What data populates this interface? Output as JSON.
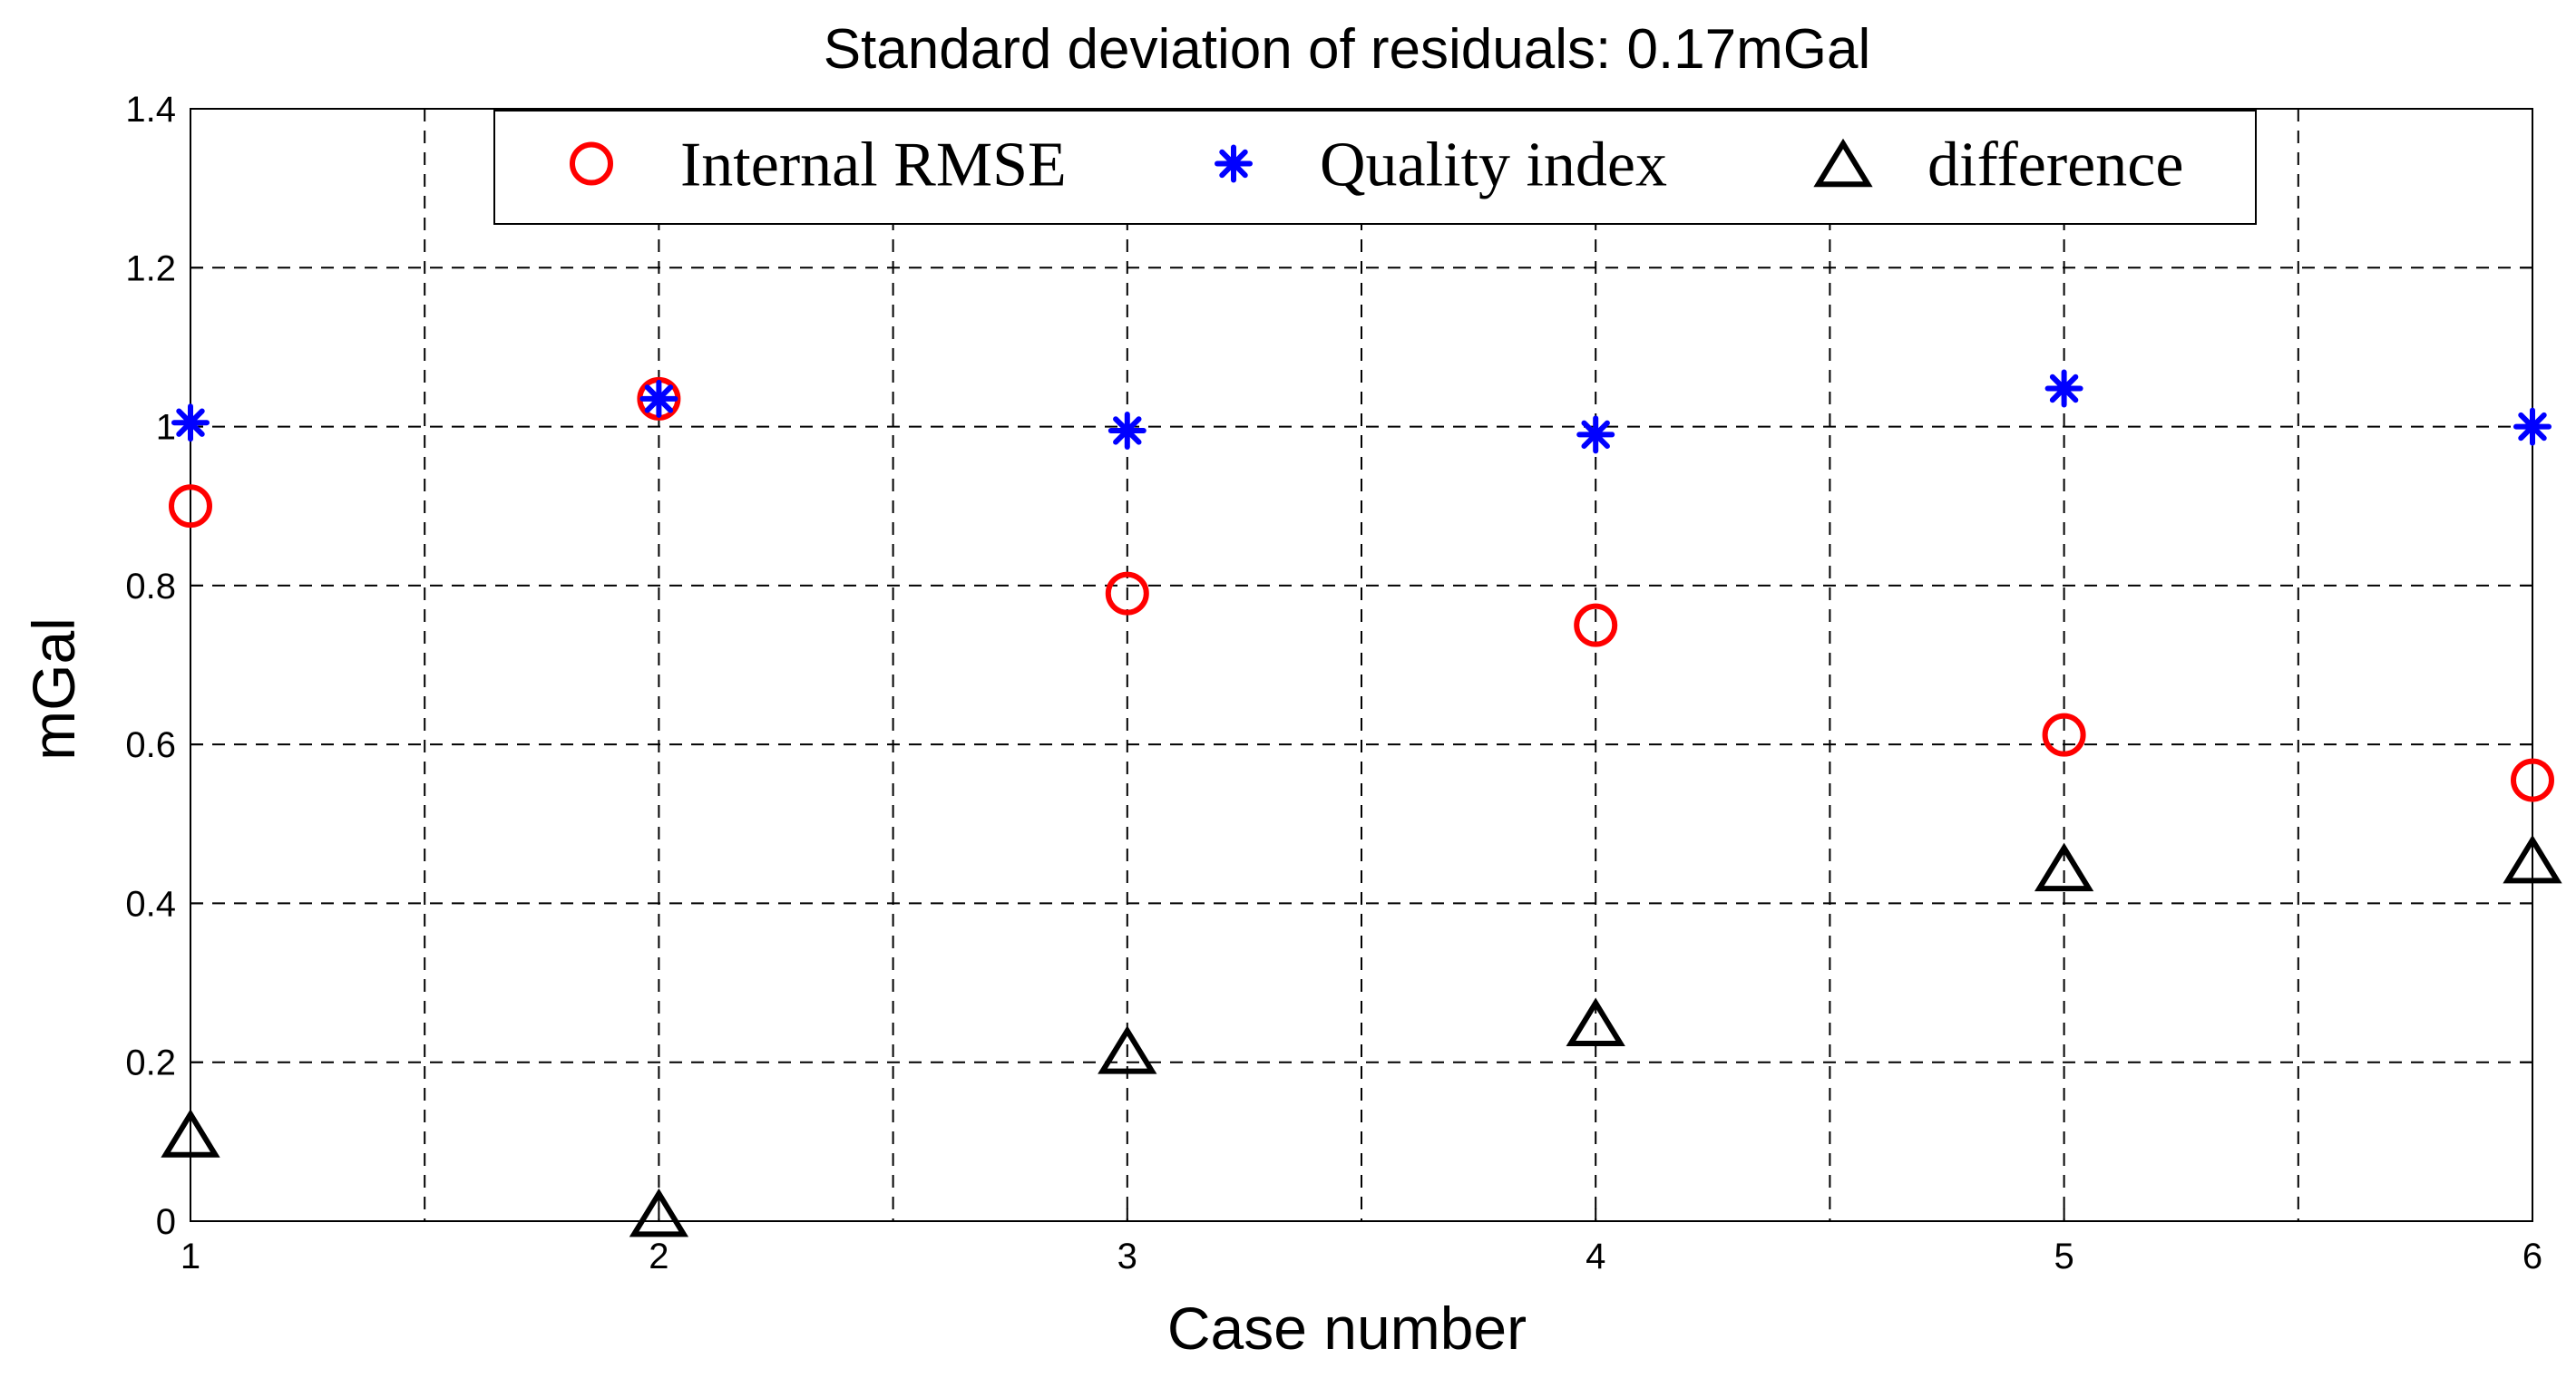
{
  "chart_data": {
    "type": "scatter",
    "title": "Standard deviation of residuals: 0.17mGal",
    "xlabel": "Case number",
    "ylabel": "mGal",
    "xlim": [
      1,
      6
    ],
    "ylim": [
      0,
      1.4
    ],
    "grid": true,
    "legend_position": "top",
    "x": [
      1,
      2,
      3,
      4,
      5,
      6
    ],
    "xticks": [
      1,
      2,
      3,
      4,
      5,
      6
    ],
    "xtick_labels": [
      "1",
      "2",
      "3",
      "4",
      "5",
      "6"
    ],
    "xgrid": [
      1.5,
      2.5,
      3.5,
      4.5,
      5.5
    ],
    "yticks": [
      0,
      0.2,
      0.4,
      0.6,
      0.8,
      1,
      1.2,
      1.4
    ],
    "ytick_labels": [
      "0",
      "0.2",
      "0.4",
      "0.6",
      "0.8",
      "1",
      "1.2",
      "1.4"
    ],
    "series": [
      {
        "name": "Internal RMSE",
        "marker": "circle",
        "color": "#ff0000",
        "values": [
          0.9,
          1.035,
          0.79,
          0.75,
          0.612,
          0.555
        ]
      },
      {
        "name": "Quality index",
        "marker": "asterisk",
        "color": "#0000ff",
        "values": [
          1.005,
          1.035,
          0.995,
          0.99,
          1.048,
          1.0
        ]
      },
      {
        "name": "difference",
        "marker": "triangle",
        "color": "#000000",
        "values": [
          0.105,
          0.005,
          0.21,
          0.245,
          0.44,
          0.45
        ]
      }
    ]
  }
}
